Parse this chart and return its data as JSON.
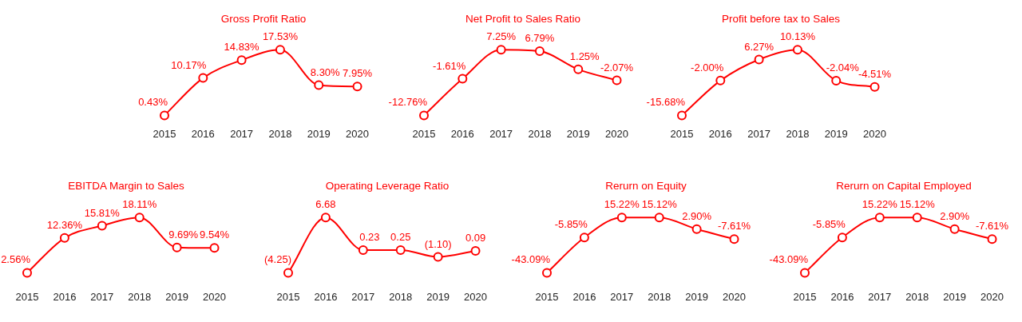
{
  "chart_data": [
    {
      "type": "line",
      "title": "Gross Profit Ratio",
      "categories": [
        "2015",
        "2016",
        "2017",
        "2018",
        "2019",
        "2020"
      ],
      "values": [
        0.43,
        10.17,
        14.83,
        17.53,
        8.3,
        7.95
      ],
      "value_labels": [
        "0.43%",
        "10.17%",
        "14.83%",
        "17.53%",
        "8.30%",
        "7.95%"
      ],
      "color": "#ff0000",
      "marker": "circle",
      "tick_labels": "x"
    },
    {
      "type": "line",
      "title": "Net Profit to Sales Ratio",
      "categories": [
        "2015",
        "2016",
        "2017",
        "2018",
        "2019",
        "2020"
      ],
      "values": [
        -12.76,
        -1.61,
        7.25,
        6.79,
        1.25,
        -2.07
      ],
      "value_labels": [
        "-12.76%",
        "-1.61%",
        "7.25%",
        "6.79%",
        "1.25%",
        "-2.07%"
      ],
      "color": "#ff0000",
      "marker": "circle",
      "tick_labels": "x"
    },
    {
      "type": "line",
      "title": "Profit before tax to Sales",
      "categories": [
        "2015",
        "2016",
        "2017",
        "2018",
        "2019",
        "2020"
      ],
      "values": [
        -15.68,
        -2.0,
        6.27,
        10.13,
        -2.04,
        -4.51
      ],
      "value_labels": [
        "-15.68%",
        "-2.00%",
        "6.27%",
        "10.13%",
        "-2.04%",
        "-4.51%"
      ],
      "color": "#ff0000",
      "marker": "circle",
      "tick_labels": "x"
    },
    {
      "type": "line",
      "title": "EBITDA Margin to Sales",
      "categories": [
        "2015",
        "2016",
        "2017",
        "2018",
        "2019",
        "2020"
      ],
      "values": [
        2.56,
        12.36,
        15.81,
        18.11,
        9.69,
        9.54
      ],
      "value_labels": [
        "2.56%",
        "12.36%",
        "15.81%",
        "18.11%",
        "9.69%",
        "9.54%"
      ],
      "color": "#ff0000",
      "marker": "circle",
      "tick_labels": "x"
    },
    {
      "type": "line",
      "title": "Operating Leverage Ratio",
      "categories": [
        "2015",
        "2016",
        "2017",
        "2018",
        "2019",
        "2020"
      ],
      "values": [
        -4.25,
        6.68,
        0.23,
        0.25,
        -1.1,
        0.09
      ],
      "value_labels": [
        "(4.25)",
        "6.68",
        "0.23",
        "0.25",
        "(1.10)",
        "0.09"
      ],
      "color": "#ff0000",
      "marker": "circle",
      "tick_labels": "x"
    },
    {
      "type": "line",
      "title": "Rerurn on Equity",
      "categories": [
        "2015",
        "2016",
        "2017",
        "2018",
        "2019",
        "2020"
      ],
      "values": [
        -43.09,
        -5.85,
        15.22,
        15.12,
        2.9,
        -7.61
      ],
      "value_labels": [
        "-43.09%",
        "-5.85%",
        "15.22%",
        "15.12%",
        "2.90%",
        "-7.61%"
      ],
      "color": "#ff0000",
      "marker": "circle",
      "tick_labels": "x"
    },
    {
      "type": "line",
      "title": "Rerurn on Capital Employed",
      "categories": [
        "2015",
        "2016",
        "2017",
        "2018",
        "2019",
        "2020"
      ],
      "values": [
        -43.09,
        -5.85,
        15.22,
        15.12,
        2.9,
        -7.61
      ],
      "value_labels": [
        "-43.09%",
        "-5.85%",
        "15.22%",
        "15.12%",
        "2.90%",
        "-7.61%"
      ],
      "color": "#ff0000",
      "marker": "circle",
      "tick_labels": "x"
    }
  ]
}
